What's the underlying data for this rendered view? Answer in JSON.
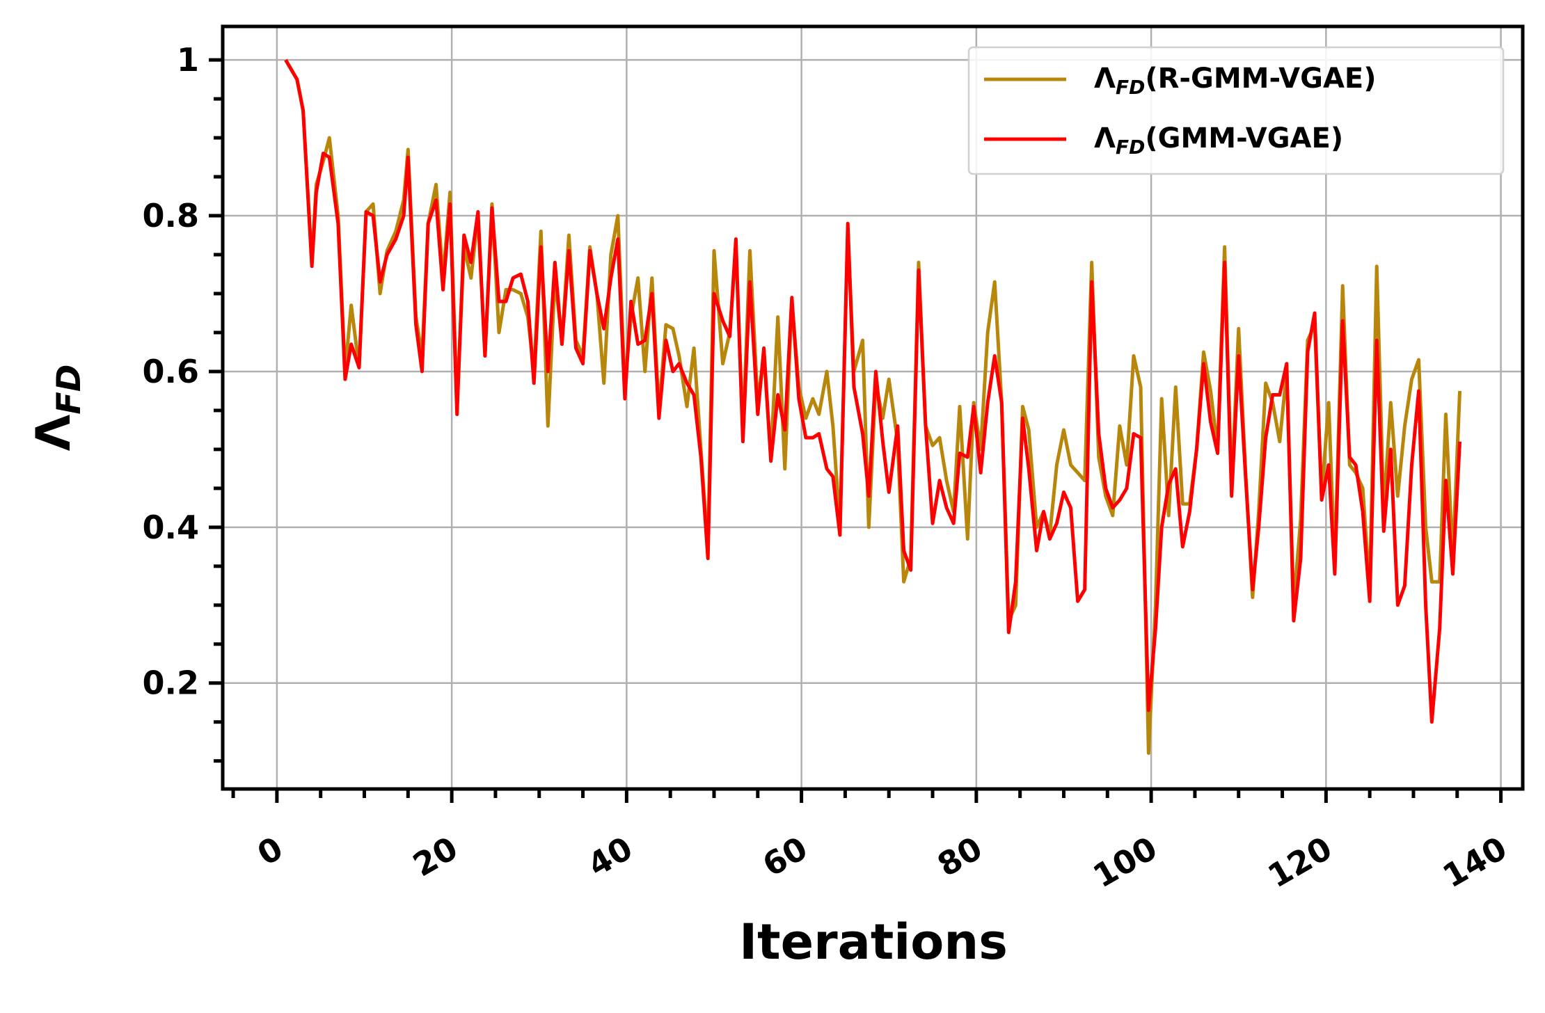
{
  "chart_data": {
    "type": "line",
    "xlabel": "Iterations",
    "ylabel": "ΛFD",
    "xlim": [
      -6.2,
      142.5
    ],
    "ylim": [
      0.064,
      1.043
    ],
    "xticks": [
      0,
      20,
      40,
      60,
      80,
      100,
      120,
      140
    ],
    "yticks": [
      0.2,
      0.4,
      0.6,
      0.8,
      1.0
    ],
    "x_minor_ticks": [
      -5,
      5,
      10,
      15,
      25,
      30,
      35,
      45,
      50,
      55,
      65,
      70,
      75,
      85,
      90,
      95,
      105,
      110,
      115,
      125,
      130,
      135
    ],
    "y_minor_ticks": [
      0.1,
      0.15,
      0.25,
      0.3,
      0.35,
      0.45,
      0.5,
      0.55,
      0.65,
      0.7,
      0.75,
      0.85,
      0.9,
      0.95
    ],
    "grid": true,
    "legend": "upper right",
    "x": [
      1,
      2.3,
      3,
      4,
      4.5,
      5.3,
      6,
      7,
      7.8,
      8.5,
      9.4,
      10.2,
      11,
      11.8,
      12.6,
      13.6,
      14.5,
      15,
      15.9,
      16.6,
      17.3,
      18.2,
      19,
      19.8,
      20.6,
      21.4,
      22.2,
      23,
      23.8,
      24.6,
      25.4,
      26.2,
      27,
      27.9,
      28.7,
      29.4,
      30.2,
      31,
      31.8,
      32.6,
      33.4,
      34.2,
      35,
      35.8,
      36.6,
      37.4,
      38.2,
      39,
      39.8,
      40.5,
      41.3,
      42.1,
      42.9,
      43.7,
      44.5,
      45.3,
      46,
      46.9,
      47.7,
      48.5,
      49.3,
      50,
      51,
      51.8,
      52.5,
      53.3,
      54.1,
      55,
      55.7,
      56.5,
      57.3,
      58.1,
      58.9,
      59.7,
      60.5,
      61.3,
      62,
      62.9,
      63.6,
      64.4,
      65.3,
      66,
      67,
      67.7,
      68.5,
      69.3,
      70,
      71,
      71.7,
      72.5,
      73.4,
      74.2,
      75,
      75.8,
      76.6,
      77.4,
      78.1,
      79,
      79.7,
      80.5,
      81.3,
      82.1,
      82.9,
      83.7,
      84.5,
      85.3,
      86,
      86.9,
      87.7,
      88.4,
      89.2,
      90,
      90.8,
      91.6,
      92.4,
      93.2,
      94,
      94.8,
      95.6,
      96.4,
      97.2,
      98,
      98.8,
      99.7,
      100.5,
      101.2,
      102,
      102.8,
      103.6,
      104.4,
      105.2,
      106,
      106.8,
      107.6,
      108.4,
      109.2,
      110,
      110.8,
      111.6,
      112.3,
      113.1,
      113.9,
      114.7,
      115.5,
      116.3,
      117.1,
      117.9,
      118.7,
      119.5,
      120.3,
      121,
      121.9,
      122.7,
      123.4,
      124.2,
      125,
      125.8,
      126.6,
      127.4,
      128.2,
      129,
      129.8,
      130.6,
      131.4,
      132.1,
      133,
      133.7,
      134.5,
      135.3
    ],
    "series": [
      {
        "name": "ΛFD(R-GMM-VGAE)",
        "color": "#b8860b",
        "values": [
          1.0,
          0.975,
          0.935,
          0.74,
          0.84,
          0.87,
          0.9,
          0.8,
          0.6,
          0.685,
          0.605,
          0.805,
          0.815,
          0.7,
          0.755,
          0.78,
          0.82,
          0.885,
          0.67,
          0.62,
          0.79,
          0.84,
          0.72,
          0.83,
          0.56,
          0.76,
          0.72,
          0.8,
          0.62,
          0.815,
          0.65,
          0.705,
          0.705,
          0.7,
          0.67,
          0.6,
          0.78,
          0.53,
          0.72,
          0.64,
          0.775,
          0.64,
          0.62,
          0.76,
          0.7,
          0.585,
          0.75,
          0.8,
          0.58,
          0.67,
          0.72,
          0.6,
          0.72,
          0.55,
          0.66,
          0.655,
          0.62,
          0.555,
          0.63,
          0.5,
          0.37,
          0.755,
          0.61,
          0.65,
          0.76,
          0.52,
          0.755,
          0.56,
          0.62,
          0.49,
          0.67,
          0.475,
          0.69,
          0.58,
          0.54,
          0.565,
          0.545,
          0.6,
          0.53,
          0.4,
          0.78,
          0.6,
          0.64,
          0.4,
          0.585,
          0.54,
          0.59,
          0.51,
          0.33,
          0.36,
          0.74,
          0.53,
          0.505,
          0.515,
          0.46,
          0.42,
          0.555,
          0.385,
          0.56,
          0.5,
          0.65,
          0.715,
          0.56,
          0.28,
          0.3,
          0.555,
          0.525,
          0.4,
          0.42,
          0.39,
          0.48,
          0.525,
          0.48,
          0.47,
          0.46,
          0.74,
          0.49,
          0.44,
          0.415,
          0.53,
          0.48,
          0.62,
          0.58,
          0.11,
          0.3,
          0.565,
          0.415,
          0.58,
          0.43,
          0.43,
          0.5,
          0.625,
          0.575,
          0.5,
          0.76,
          0.45,
          0.655,
          0.47,
          0.31,
          0.42,
          0.585,
          0.56,
          0.51,
          0.6,
          0.3,
          0.41,
          0.64,
          0.66,
          0.44,
          0.56,
          0.35,
          0.71,
          0.48,
          0.47,
          0.45,
          0.32,
          0.735,
          0.42,
          0.56,
          0.44,
          0.53,
          0.59,
          0.615,
          0.4,
          0.33,
          0.33,
          0.545,
          0.36,
          0.575
        ]
      },
      {
        "name": "ΛFD(GMM-VGAE)",
        "color": "#ff0000",
        "values": [
          1.0,
          0.975,
          0.935,
          0.735,
          0.83,
          0.88,
          0.875,
          0.79,
          0.59,
          0.635,
          0.605,
          0.805,
          0.8,
          0.715,
          0.75,
          0.77,
          0.8,
          0.875,
          0.66,
          0.6,
          0.79,
          0.82,
          0.705,
          0.815,
          0.545,
          0.775,
          0.74,
          0.805,
          0.62,
          0.81,
          0.69,
          0.69,
          0.72,
          0.725,
          0.69,
          0.585,
          0.76,
          0.6,
          0.74,
          0.635,
          0.755,
          0.63,
          0.61,
          0.755,
          0.7,
          0.655,
          0.72,
          0.77,
          0.565,
          0.69,
          0.635,
          0.64,
          0.7,
          0.54,
          0.64,
          0.6,
          0.61,
          0.585,
          0.57,
          0.49,
          0.36,
          0.7,
          0.665,
          0.645,
          0.77,
          0.51,
          0.715,
          0.545,
          0.63,
          0.485,
          0.57,
          0.525,
          0.695,
          0.565,
          0.515,
          0.515,
          0.52,
          0.475,
          0.465,
          0.39,
          0.79,
          0.58,
          0.52,
          0.44,
          0.6,
          0.51,
          0.445,
          0.53,
          0.37,
          0.345,
          0.73,
          0.53,
          0.405,
          0.46,
          0.425,
          0.405,
          0.495,
          0.49,
          0.555,
          0.47,
          0.56,
          0.62,
          0.56,
          0.265,
          0.33,
          0.54,
          0.475,
          0.37,
          0.42,
          0.385,
          0.405,
          0.445,
          0.425,
          0.305,
          0.32,
          0.715,
          0.52,
          0.45,
          0.425,
          0.435,
          0.45,
          0.52,
          0.515,
          0.165,
          0.27,
          0.4,
          0.455,
          0.475,
          0.375,
          0.42,
          0.5,
          0.61,
          0.535,
          0.495,
          0.74,
          0.44,
          0.62,
          0.465,
          0.32,
          0.4,
          0.515,
          0.57,
          0.57,
          0.61,
          0.28,
          0.36,
          0.625,
          0.675,
          0.435,
          0.48,
          0.34,
          0.665,
          0.49,
          0.48,
          0.42,
          0.305,
          0.64,
          0.395,
          0.5,
          0.3,
          0.325,
          0.48,
          0.575,
          0.3,
          0.15,
          0.27,
          0.46,
          0.34,
          0.51
        ]
      }
    ]
  }
}
